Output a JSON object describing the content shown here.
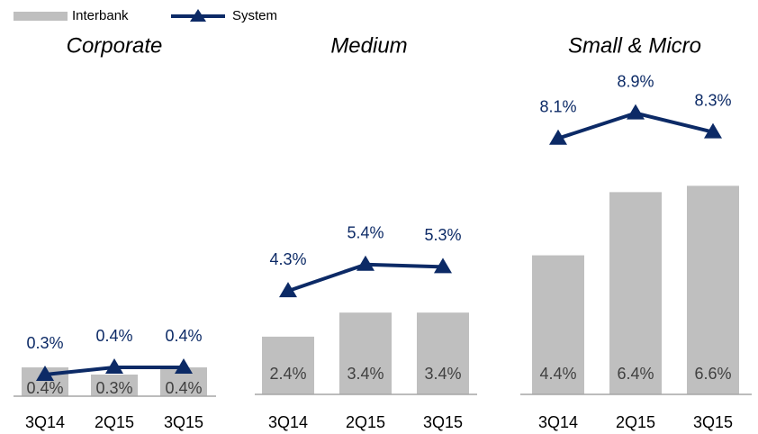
{
  "chart_data": [
    {
      "type": "bar",
      "title": "Corporate",
      "categories": [
        "3Q14",
        "2Q15",
        "3Q15"
      ],
      "ylim": [
        0,
        4.5
      ],
      "series": [
        {
          "name": "Interbank",
          "type": "bar",
          "color": "#bfbfbf",
          "values": [
            0.4,
            0.3,
            0.4
          ],
          "value_labels": [
            "0.4%",
            "0.3%",
            "0.4%"
          ]
        },
        {
          "name": "System",
          "type": "line",
          "color": "#0c2a66",
          "values": [
            0.3,
            0.4,
            0.4
          ],
          "value_labels": [
            "0.3%",
            "0.4%",
            "0.4%"
          ]
        }
      ]
    },
    {
      "type": "bar",
      "title": "Medium",
      "categories": [
        "3Q14",
        "2Q15",
        "3Q15"
      ],
      "ylim": [
        0,
        13.4
      ],
      "series": [
        {
          "name": "Interbank",
          "type": "bar",
          "color": "#bfbfbf",
          "values": [
            2.4,
            3.4,
            3.4
          ],
          "value_labels": [
            "2.4%",
            "3.4%",
            "3.4%"
          ]
        },
        {
          "name": "System",
          "type": "line",
          "color": "#0c2a66",
          "values": [
            4.3,
            5.4,
            5.3
          ],
          "value_labels": [
            "4.3%",
            "5.4%",
            "5.3%"
          ]
        }
      ]
    },
    {
      "type": "bar",
      "title": "Small & Micro",
      "categories": [
        "3Q14",
        "2Q15",
        "3Q15"
      ],
      "ylim": [
        0,
        10.2
      ],
      "series": [
        {
          "name": "Interbank",
          "type": "bar",
          "color": "#bfbfbf",
          "values": [
            4.4,
            6.4,
            6.6
          ],
          "value_labels": [
            "4.4%",
            "6.4%",
            "6.6%"
          ]
        },
        {
          "name": "System",
          "type": "line",
          "color": "#0c2a66",
          "values": [
            8.1,
            8.9,
            8.3
          ],
          "value_labels": [
            "8.1%",
            "8.9%",
            "8.3%"
          ]
        }
      ]
    }
  ]
}
